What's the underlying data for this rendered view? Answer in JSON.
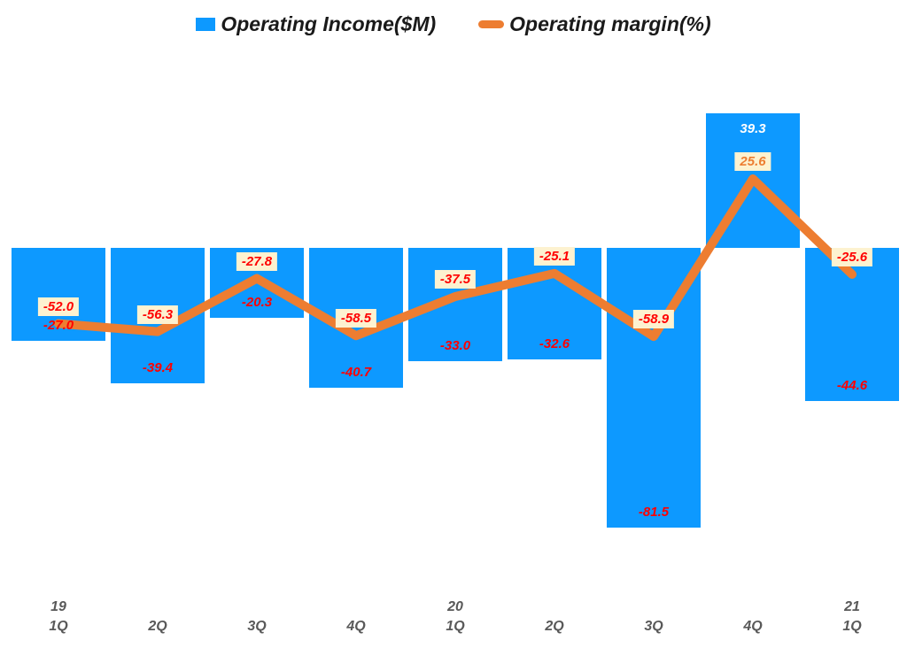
{
  "legend": {
    "income_label": "Operating Income($M)",
    "margin_label": "Operating margin(%)"
  },
  "chart_data": {
    "type": "bar+line",
    "categories": [
      {
        "year": "19",
        "quarter": "1Q"
      },
      {
        "year": "",
        "quarter": "2Q"
      },
      {
        "year": "",
        "quarter": "3Q"
      },
      {
        "year": "",
        "quarter": "4Q"
      },
      {
        "year": "20",
        "quarter": "1Q"
      },
      {
        "year": "",
        "quarter": "2Q"
      },
      {
        "year": "",
        "quarter": "3Q"
      },
      {
        "year": "",
        "quarter": "4Q"
      },
      {
        "year": "21",
        "quarter": "1Q"
      }
    ],
    "series": [
      {
        "name": "Operating Income($M)",
        "type": "bar",
        "axis": "primary",
        "values": [
          -27.0,
          -39.4,
          -20.3,
          -40.7,
          -33.0,
          -32.6,
          -81.5,
          39.3,
          -44.6
        ]
      },
      {
        "name": "Operating margin(%)",
        "type": "line",
        "axis": "secondary",
        "values": [
          -52.0,
          -56.3,
          -27.8,
          -58.5,
          -37.5,
          -25.1,
          -58.9,
          25.6,
          -25.6
        ]
      }
    ],
    "title": "",
    "xlabel": "",
    "ylabel": "",
    "grid": false,
    "axes_lines_visible": false,
    "legend_position": "top-center",
    "data_labels_visible": true
  },
  "colors": {
    "bar": "#0D99FF",
    "line": "#ED7D31",
    "negative_label": "#FF0000",
    "positive_bar_label": "#FFFFFF",
    "positive_line_label": "#ED7D31",
    "label_box_bg": "#FDF2D0",
    "axis_text": "#595959",
    "legend_text": "#1A1A1A",
    "background": "#FFFFFF"
  }
}
